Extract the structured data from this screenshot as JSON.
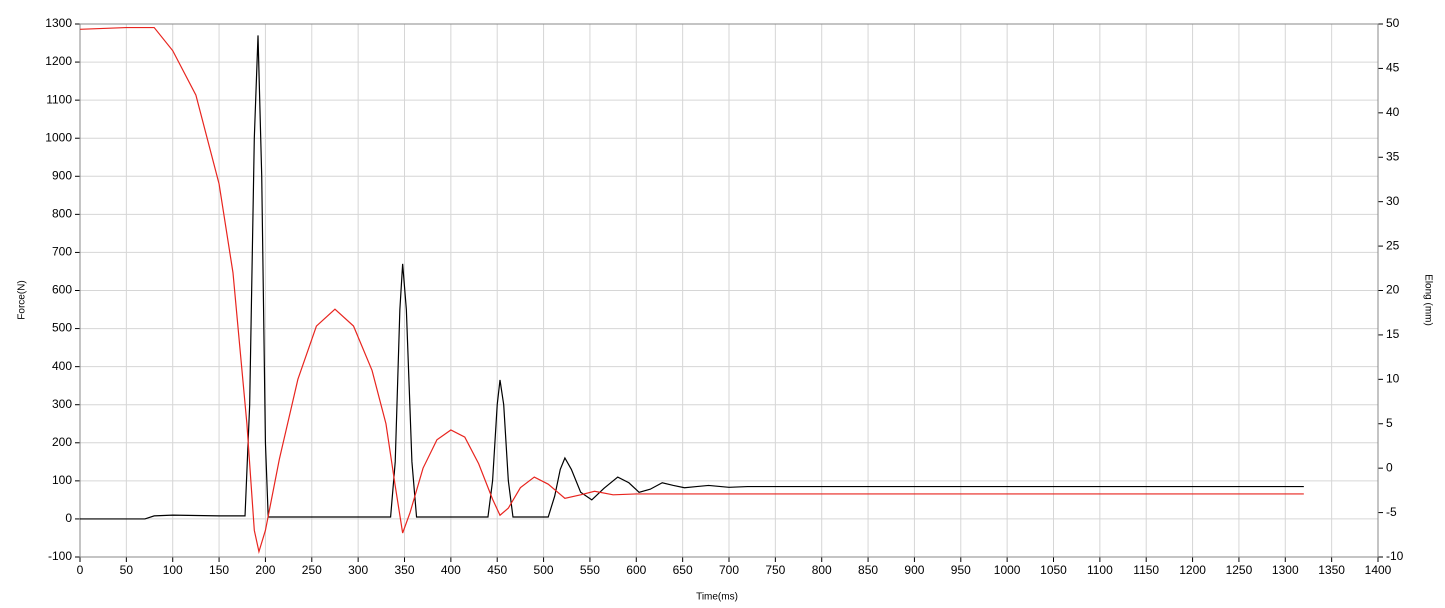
{
  "chart_data": {
    "type": "line",
    "x_label": "Time(ms)",
    "y_label": "Force(N)",
    "y2_label": "Elong (mm)",
    "xlim": [
      0,
      1400
    ],
    "xticks": [
      0,
      50,
      100,
      150,
      200,
      250,
      300,
      350,
      400,
      450,
      500,
      550,
      600,
      650,
      700,
      750,
      800,
      850,
      900,
      950,
      1000,
      1050,
      1100,
      1150,
      1200,
      1250,
      1300,
      1350,
      1400
    ],
    "ylim": [
      -100,
      1300
    ],
    "yticks": [
      -100,
      0,
      100,
      200,
      300,
      400,
      500,
      600,
      700,
      800,
      900,
      1000,
      1100,
      1200,
      1300
    ],
    "y2lim": [
      -10,
      50
    ],
    "y2ticks": [
      -10,
      -5,
      0,
      5,
      10,
      15,
      20,
      25,
      30,
      35,
      40,
      45,
      50
    ],
    "grid": true,
    "series": [
      {
        "color": "#000000",
        "axis": "y",
        "x": [
          0,
          70,
          80,
          100,
          150,
          178,
          183,
          188,
          192,
          196,
          200,
          203,
          300,
          335,
          340,
          345,
          348,
          352,
          358,
          363,
          440,
          445,
          450,
          453,
          457,
          462,
          467,
          505,
          512,
          518,
          523,
          530,
          540,
          552,
          565,
          580,
          592,
          603,
          615,
          628,
          640,
          652,
          665,
          678,
          700,
          720,
          1320
        ],
        "values": [
          0,
          0,
          8,
          10,
          8,
          8,
          300,
          1000,
          1270,
          900,
          200,
          5,
          5,
          5,
          150,
          550,
          670,
          550,
          150,
          5,
          5,
          100,
          300,
          365,
          300,
          100,
          5,
          5,
          60,
          130,
          160,
          130,
          70,
          50,
          80,
          110,
          95,
          70,
          78,
          95,
          88,
          82,
          85,
          88,
          83,
          85,
          85
        ]
      },
      {
        "color": "#e8251f",
        "axis": "y2",
        "x": [
          0,
          50,
          80,
          100,
          125,
          150,
          165,
          180,
          188,
          193,
          200,
          215,
          235,
          255,
          275,
          295,
          315,
          330,
          340,
          348,
          356,
          370,
          385,
          400,
          415,
          430,
          445,
          453,
          462,
          475,
          490,
          505,
          523,
          540,
          555,
          575,
          600,
          700,
          1320
        ],
        "values": [
          49.4,
          49.6,
          49.6,
          47,
          42,
          32,
          22,
          5,
          -7,
          -9.4,
          -7,
          1,
          10,
          16,
          17.9,
          16,
          11,
          5,
          -2,
          -7.3,
          -5,
          0,
          3.2,
          4.3,
          3.5,
          0.5,
          -3.5,
          -5.3,
          -4.5,
          -2.2,
          -1.0,
          -1.8,
          -3.4,
          -3.0,
          -2.6,
          -3.0,
          -2.9,
          -2.9,
          -2.9
        ]
      }
    ]
  }
}
